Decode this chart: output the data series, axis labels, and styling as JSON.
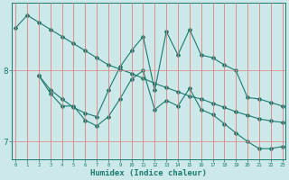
{
  "xlabel": "Humidex (Indice chaleur)",
  "bg_color": "#cce8e8",
  "line_color": "#1a7a6e",
  "grid_color": "#e08080",
  "xmin": 0,
  "xmax": 23,
  "ymin": 6.75,
  "ymax": 8.95,
  "yticks": [
    7,
    8
  ],
  "line1_x": [
    0,
    1,
    2,
    3,
    4,
    5,
    6,
    7,
    8,
    9,
    10,
    11,
    12,
    13,
    14,
    15,
    16,
    17,
    18,
    19,
    20,
    21,
    22,
    23
  ],
  "line1_y": [
    8.6,
    8.78,
    8.68,
    8.58,
    8.48,
    8.38,
    8.28,
    8.18,
    8.08,
    8.02,
    7.96,
    7.89,
    7.82,
    7.76,
    7.7,
    7.64,
    7.6,
    7.54,
    7.48,
    7.42,
    7.37,
    7.32,
    7.29,
    7.27
  ],
  "line2_x": [
    2,
    3,
    4,
    5,
    6,
    7,
    8,
    9,
    10,
    11,
    12,
    13,
    14,
    15,
    16,
    17,
    18,
    19,
    20,
    21,
    22,
    23
  ],
  "line2_y": [
    7.93,
    7.73,
    7.6,
    7.48,
    7.4,
    7.35,
    7.72,
    8.05,
    8.28,
    8.48,
    7.72,
    8.55,
    8.22,
    8.58,
    8.22,
    8.18,
    8.08,
    8.0,
    7.62,
    7.6,
    7.55,
    7.5
  ],
  "line3_x": [
    2,
    3,
    4,
    5,
    6,
    7,
    8,
    9,
    10,
    11,
    12,
    13,
    14,
    15,
    16,
    17,
    18,
    19,
    20,
    21,
    22,
    23
  ],
  "line3_y": [
    7.93,
    7.68,
    7.5,
    7.5,
    7.3,
    7.22,
    7.35,
    7.6,
    7.88,
    8.0,
    7.45,
    7.58,
    7.5,
    7.75,
    7.45,
    7.38,
    7.25,
    7.12,
    7.0,
    6.9,
    6.9,
    6.93
  ]
}
